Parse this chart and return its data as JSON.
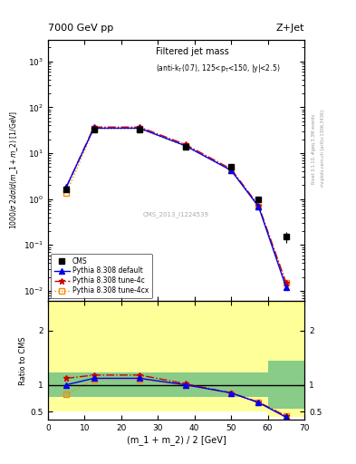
{
  "title_left": "7000 GeV pp",
  "title_right": "Z+Jet",
  "plot_title": "Filtered jet mass",
  "plot_subtitle": "(anti-k_{T}(0.7), 125<p_{T}<150, |y|<2.5)",
  "ylabel_main": "1000/#sigma 2d#sigma/d(m_1 + m_2) [1/GeV]",
  "ylabel_ratio": "Ratio to CMS",
  "xlabel": "(m_1 + m_2) / 2 [GeV]",
  "watermark": "CMS_2013_I1224539",
  "right_label": "mcplots.cern.ch [arXiv:1306.3436]",
  "right_label2": "Rivet 3.1.10, #geq 3.3M events",
  "x_data": [
    5.0,
    12.5,
    25.0,
    37.5,
    50.0,
    57.5,
    65.0
  ],
  "cms_y": [
    1.65,
    32.0,
    32.0,
    14.0,
    5.0,
    1.0,
    0.15
  ],
  "cms_yerr": [
    0.25,
    2.5,
    2.5,
    1.2,
    0.45,
    0.12,
    0.04
  ],
  "pythia_default_y": [
    1.85,
    35.0,
    35.0,
    14.5,
    4.2,
    0.68,
    0.012
  ],
  "pythia_4c_y": [
    1.8,
    37.0,
    37.0,
    15.5,
    4.5,
    0.72,
    0.015
  ],
  "pythia_4cx_y": [
    1.35,
    34.0,
    34.0,
    14.2,
    4.3,
    0.68,
    0.015
  ],
  "ratio_default": [
    1.0,
    1.12,
    1.12,
    1.0,
    0.85,
    0.67,
    0.4
  ],
  "ratio_4c": [
    1.12,
    1.18,
    1.18,
    1.02,
    0.85,
    0.68,
    0.42
  ],
  "ratio_4cx": [
    0.82,
    1.1,
    1.1,
    0.99,
    0.84,
    0.67,
    0.42
  ],
  "color_default": "#0000ee",
  "color_4c": "#cc0000",
  "color_4cx": "#ff8800",
  "color_cms": "#000000",
  "xlim": [
    0,
    70
  ],
  "ylim_main": [
    0.006,
    3000
  ],
  "ylim_ratio": [
    0.35,
    2.55
  ],
  "band_edges": [
    0,
    10,
    20,
    30,
    40,
    55,
    60,
    70
  ],
  "yellow_lo": [
    0.5,
    0.5,
    0.5,
    0.5,
    0.5,
    0.5,
    0.4,
    0.4
  ],
  "yellow_hi": [
    2.55,
    2.55,
    2.55,
    2.55,
    2.55,
    2.55,
    2.55,
    2.55
  ],
  "green_lo": [
    0.78,
    0.78,
    0.78,
    0.78,
    0.78,
    0.78,
    0.55,
    0.55
  ],
  "green_hi": [
    1.22,
    1.22,
    1.22,
    1.22,
    1.22,
    1.22,
    1.45,
    1.45
  ]
}
